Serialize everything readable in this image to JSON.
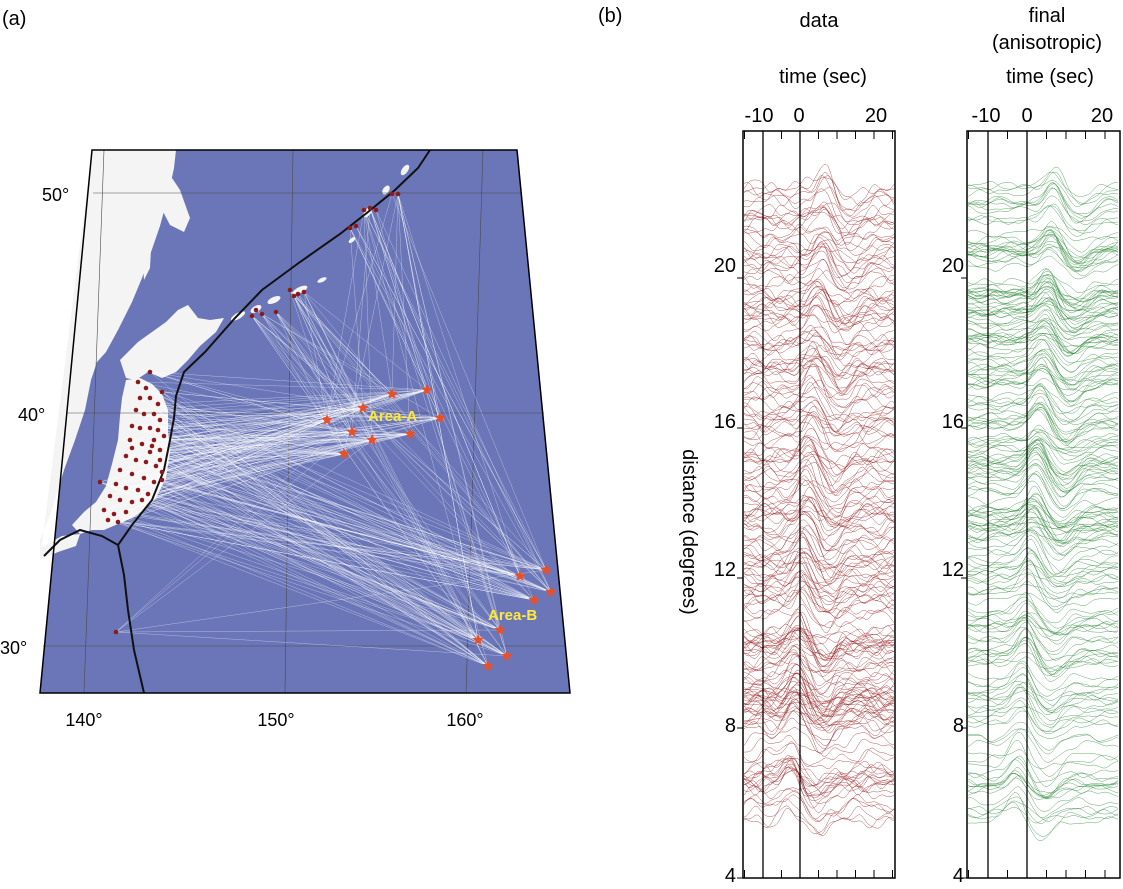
{
  "panel_a": {
    "label": "(a)",
    "lat_ticks": [
      "30°",
      "40°",
      "50°"
    ],
    "lon_ticks": [
      "140°",
      "150°",
      "160°"
    ],
    "area_a_label": "Area-A",
    "area_b_label": "Area-B",
    "colors": {
      "ocean": "#6a76b8",
      "land": "#f4f4f4",
      "ray_paths": "#ffffff",
      "stations": "#8b1a1a",
      "events": "#e8502a",
      "trench": "#111111",
      "area_labels": "#ffe93b"
    }
  },
  "panel_b": {
    "label": "(b)",
    "ylabel": "distance (degrees)",
    "columns": [
      {
        "title": "data",
        "xlabel": "time (sec)",
        "x_ticks": [
          "-10",
          "0",
          "20"
        ],
        "y_ticks": [
          "4",
          "8",
          "12",
          "16",
          "20"
        ],
        "trace_color": "#9b2424"
      },
      {
        "title": "final",
        "subtitle": "(anisotropic)",
        "xlabel": "time (sec)",
        "x_ticks": [
          "-10",
          "0",
          "20"
        ],
        "y_ticks": [
          "4",
          "8",
          "12",
          "16",
          "20"
        ],
        "trace_color": "#2f8a3a"
      }
    ]
  }
}
